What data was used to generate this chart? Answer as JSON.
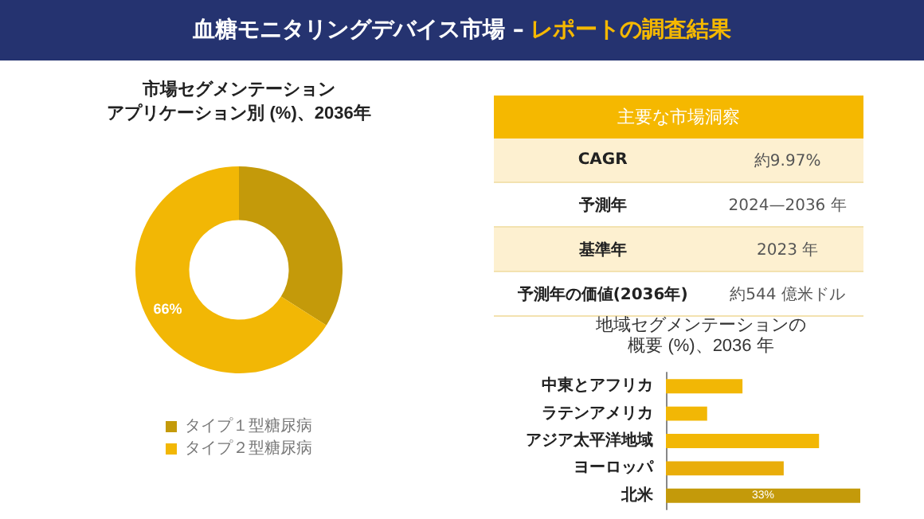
{
  "chart_data": [
    {
      "type": "other",
      "title": "血糖モニタリングデバイス市場 –",
      "subtitle": "レポートの調査結果"
    },
    {
      "type": "donut",
      "title": "市場セグメンテーション",
      "subtitle": "アプリケーション別 (%)、2036年",
      "categories": [
        "タイプ１型糖尿病",
        "タイプ２型糖尿病"
      ],
      "values": [
        34,
        66
      ],
      "colors": [
        "#c49a0a",
        "#f2b705"
      ],
      "value_labels": [
        null,
        "66%"
      ],
      "legend": "bottom"
    },
    {
      "type": "other",
      "title": "主要な市場洞察",
      "annotations": [
        "CAGR",
        "約9.97%",
        "予測年",
        "2024—2036 年",
        "基準年",
        "2023 年",
        "予測年の価値(2036年)",
        "約544 億米ドル"
      ]
    },
    {
      "type": "bar",
      "orientation": "horizontal",
      "title": "地域セグメンテーションの",
      "subtitle": "概要 (%)、2036 年",
      "categories": [
        "中東とアフリカ",
        "ラテンアメリカ",
        "アジア太平洋地域",
        "ヨーロッパ",
        "北米"
      ],
      "values": [
        13,
        7,
        26,
        20,
        33
      ],
      "xlim": [
        0,
        33
      ],
      "colors": [
        "#f2b705",
        "#f2b705",
        "#f2b705",
        "#e9ad0a",
        "#c49a0a"
      ],
      "value_labels": [
        null,
        null,
        null,
        null,
        "33%"
      ]
    }
  ]
}
